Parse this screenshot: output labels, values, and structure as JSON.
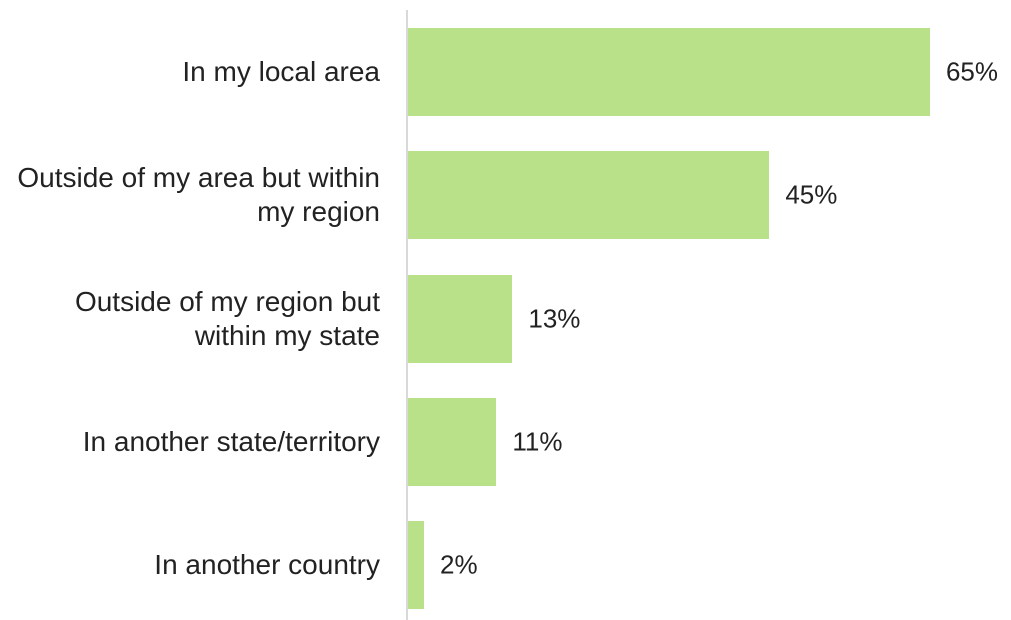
{
  "chart_data": {
    "type": "bar",
    "orientation": "horizontal",
    "categories": [
      "In my local area",
      "Outside of my area but within my region",
      "Outside of my region but within my state",
      "In another state/territory",
      "In another country"
    ],
    "values": [
      65,
      45,
      13,
      11,
      2
    ],
    "value_labels": [
      "65%",
      "45%",
      "13%",
      "11%",
      "2%"
    ],
    "color": "#b9e18a"
  }
}
